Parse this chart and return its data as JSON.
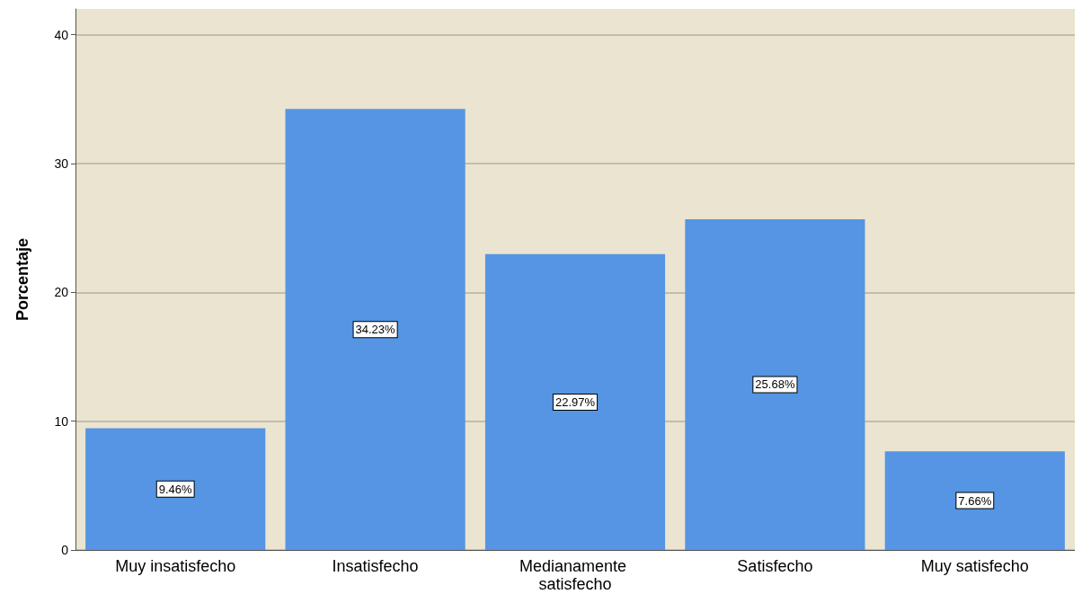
{
  "chart_data": {
    "type": "bar",
    "ylabel": "Porcentaje",
    "categories": [
      "Muy insatisfecho",
      "Insatisfecho",
      "Medianamente satisfecho",
      "Satisfecho",
      "Muy satisfecho"
    ],
    "values": [
      9.46,
      34.23,
      22.97,
      25.68,
      7.66
    ],
    "value_labels": [
      "9.46%",
      "34.23%",
      "22.97%",
      "25.68%",
      "7.66%"
    ],
    "color": "#5595e3",
    "ylim": [
      0,
      42
    ],
    "yticks": [
      0,
      10,
      20,
      30,
      40
    ],
    "grid": "y"
  }
}
